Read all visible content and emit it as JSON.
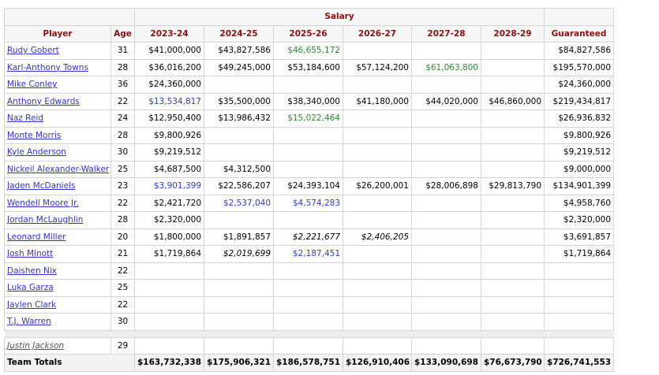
{
  "table": {
    "super_header": "Salary",
    "columns": [
      "Player",
      "Age",
      "2023-24",
      "2024-25",
      "2025-26",
      "2026-27",
      "2027-28",
      "2028-29",
      "Guaranteed"
    ],
    "rows": [
      {
        "player": "Rudy Gobert",
        "age": 31,
        "salary": [
          "$41,000,000",
          "$43,827,586",
          {
            "text": "$46,655,172",
            "color": "#2e8b2e"
          },
          null,
          null,
          null
        ],
        "guaranteed": "$84,827,586"
      },
      {
        "player": "Karl-Anthony Towns",
        "age": 28,
        "salary": [
          "$36,016,200",
          "$49,245,000",
          "$53,184,600",
          "$57,124,200",
          {
            "text": "$61,063,800",
            "color": "#2e8b2e"
          },
          null
        ],
        "guaranteed": "$195,570,000"
      },
      {
        "player": "Mike Conley",
        "age": 36,
        "salary": [
          "$24,360,000",
          null,
          null,
          null,
          null,
          null
        ],
        "guaranteed": "$24,360,000"
      },
      {
        "player": "Anthony Edwards",
        "age": 22,
        "salary": [
          {
            "text": "$13,534,817",
            "color": "#2b3fbf"
          },
          "$35,500,000",
          "$38,340,000",
          "$41,180,000",
          "$44,020,000",
          "$46,860,000"
        ],
        "guaranteed": "$219,434,817"
      },
      {
        "player": "Naz Reid",
        "age": 24,
        "salary": [
          "$12,950,400",
          "$13,986,432",
          {
            "text": "$15,022,464",
            "color": "#2e8b2e"
          },
          null,
          null,
          null
        ],
        "guaranteed": "$26,936,832"
      },
      {
        "player": "Monte Morris",
        "age": 28,
        "salary": [
          "$9,800,926",
          null,
          null,
          null,
          null,
          null
        ],
        "guaranteed": "$9,800,926"
      },
      {
        "player": "Kyle Anderson",
        "age": 30,
        "salary": [
          "$9,219,512",
          null,
          null,
          null,
          null,
          null
        ],
        "guaranteed": "$9,219,512"
      },
      {
        "player": "Nickeil Alexander-Walker",
        "age": 25,
        "salary": [
          "$4,687,500",
          "$4,312,500",
          null,
          null,
          null,
          null
        ],
        "guaranteed": "$9,000,000"
      },
      {
        "player": "Jaden McDaniels",
        "age": 23,
        "salary": [
          {
            "text": "$3,901,399",
            "color": "#2b3fbf"
          },
          "$22,586,207",
          "$24,393,104",
          "$26,200,001",
          "$28,006,898",
          "$29,813,790"
        ],
        "guaranteed": "$134,901,399"
      },
      {
        "player": "Wendell Moore Jr.",
        "age": 22,
        "salary": [
          "$2,421,720",
          {
            "text": "$2,537,040",
            "color": "#2b3fbf"
          },
          {
            "text": "$4,574,283",
            "color": "#2b3fbf"
          },
          null,
          null,
          null
        ],
        "guaranteed": "$4,958,760"
      },
      {
        "player": "Jordan McLaughlin",
        "age": 28,
        "salary": [
          "$2,320,000",
          null,
          null,
          null,
          null,
          null
        ],
        "guaranteed": "$2,320,000"
      },
      {
        "player": "Leonard Miller",
        "age": 20,
        "salary": [
          "$1,800,000",
          "$1,891,857",
          {
            "text": "$2,221,677",
            "italic": true
          },
          {
            "text": "$2,406,205",
            "italic": true
          },
          null,
          null
        ],
        "guaranteed": "$3,691,857"
      },
      {
        "player": "Josh Minott",
        "age": 21,
        "salary": [
          "$1,719,864",
          {
            "text": "$2,019,699",
            "italic": true
          },
          {
            "text": "$2,187,451",
            "color": "#2b3fbf"
          },
          null,
          null,
          null
        ],
        "guaranteed": "$1,719,864"
      },
      {
        "player": "Daishen Nix",
        "age": 22,
        "salary": [
          null,
          null,
          null,
          null,
          null,
          null
        ],
        "guaranteed": null
      },
      {
        "player": "Luka Garza",
        "age": 25,
        "salary": [
          null,
          null,
          null,
          null,
          null,
          null
        ],
        "guaranteed": null
      },
      {
        "player": "Jaylen Clark",
        "age": 22,
        "salary": [
          null,
          null,
          null,
          null,
          null,
          null
        ],
        "guaranteed": null
      },
      {
        "player": "T.J. Warren",
        "age": 30,
        "salary": [
          null,
          null,
          null,
          null,
          null,
          null
        ],
        "guaranteed": null
      }
    ],
    "dead_rows": [
      {
        "player": "Justin Jackson",
        "age": 29,
        "salary": [
          null,
          null,
          null,
          null,
          null,
          null
        ],
        "guaranteed": null
      }
    ],
    "totals": {
      "label": "Team Totals",
      "salary": [
        "$163,732,338",
        "$175,906,321",
        "$186,578,751",
        "$126,910,406",
        "$133,090,698",
        "$76,673,790"
      ],
      "guaranteed": "$726,741,553"
    }
  }
}
